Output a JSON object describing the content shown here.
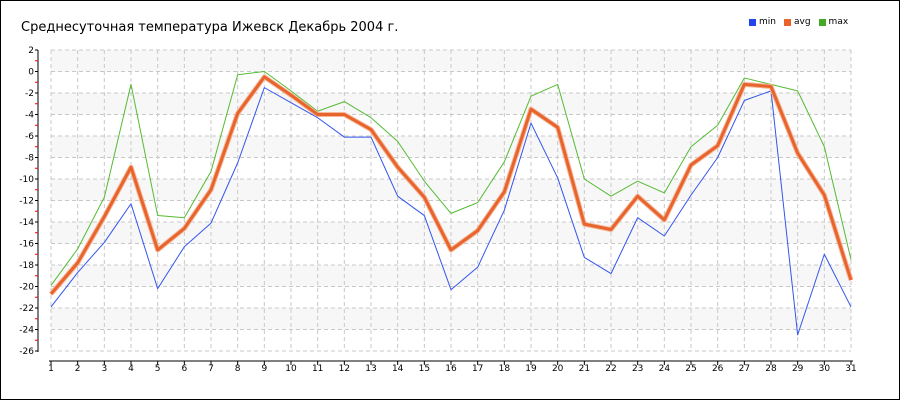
{
  "chart_data": {
    "type": "line",
    "title": "Среднесуточная температура Ижевск  Декабрь 2004 г.",
    "xlabel": "",
    "ylabel": "",
    "x": [
      1,
      2,
      3,
      4,
      5,
      6,
      7,
      8,
      9,
      10,
      11,
      12,
      13,
      14,
      15,
      16,
      17,
      18,
      19,
      20,
      21,
      22,
      23,
      24,
      25,
      26,
      27,
      28,
      29,
      30,
      31
    ],
    "ylim": [
      -26,
      2
    ],
    "yticks": [
      2,
      0,
      -2,
      -4,
      -6,
      -8,
      -10,
      -12,
      -14,
      -16,
      -18,
      -20,
      -22,
      -24,
      -26
    ],
    "grid": true,
    "legend_position": "top-right",
    "series": [
      {
        "name": "min",
        "color": "#3355ee",
        "width": 1,
        "values": [
          -21.9,
          -18.7,
          -15.9,
          -12.3,
          -20.2,
          -16.3,
          -14.1,
          -8.5,
          -1.5,
          -2.9,
          -4.3,
          -6.1,
          -6.1,
          -11.6,
          -13.4,
          -20.3,
          -18.2,
          -12.9,
          -4.8,
          -9.9,
          -17.3,
          -18.8,
          -13.6,
          -15.3,
          -11.5,
          -8.0,
          -2.7,
          -1.8,
          -24.5,
          -17.0,
          -21.9
        ]
      },
      {
        "name": "avg",
        "color": "#e8642c",
        "width": 3,
        "values": [
          -20.7,
          -17.8,
          -13.5,
          -8.9,
          -16.6,
          -14.6,
          -11.0,
          -3.9,
          -0.5,
          -2.2,
          -4.0,
          -4.0,
          -5.4,
          -8.9,
          -11.7,
          -16.6,
          -14.8,
          -11.2,
          -3.5,
          -5.2,
          -14.2,
          -14.7,
          -11.6,
          -13.8,
          -8.7,
          -6.9,
          -1.2,
          -1.4,
          -7.6,
          -11.5,
          -19.4
        ]
      },
      {
        "name": "max",
        "color": "#55bb33",
        "width": 1,
        "values": [
          -19.9,
          -16.5,
          -11.7,
          -1.2,
          -13.4,
          -13.6,
          -9.3,
          -0.3,
          0.0,
          -1.8,
          -3.7,
          -2.8,
          -4.3,
          -6.5,
          -10.2,
          -13.2,
          -12.2,
          -8.4,
          -2.3,
          -1.2,
          -10.0,
          -11.6,
          -10.2,
          -11.3,
          -7.0,
          -5.0,
          -0.6,
          -1.2,
          -1.8,
          -7.0,
          -17.5
        ]
      }
    ]
  }
}
